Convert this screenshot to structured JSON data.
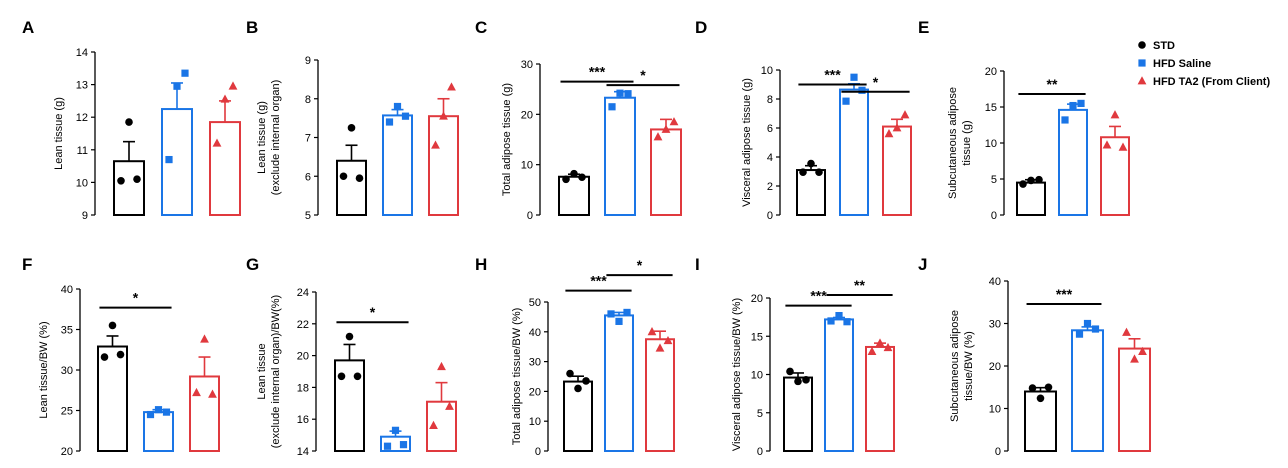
{
  "legend": [
    {
      "label": "STD",
      "color": "#000000",
      "marker": "circle"
    },
    {
      "label": "HFD Saline",
      "color": "#1a75e6",
      "marker": "square"
    },
    {
      "label": "HFD TA2 (From Client)",
      "color": "#e0393e",
      "marker": "triangle"
    }
  ],
  "chart_data": [
    {
      "type": "bar",
      "panel": "A",
      "categories": [
        "STD",
        "HFD Saline",
        "HFD TA2 (From Client)"
      ],
      "ylabel": [
        "Lean tissue (g)"
      ],
      "ylim": [
        9,
        14
      ],
      "yticks": [
        9,
        10,
        11,
        12,
        13,
        14
      ],
      "values": [
        10.65,
        12.25,
        11.85
      ],
      "errors": [
        0.6,
        0.8,
        0.65
      ],
      "points": [
        [
          10.05,
          11.85,
          10.1
        ],
        [
          10.7,
          12.95,
          13.35
        ],
        [
          11.2,
          12.55,
          12.95
        ]
      ],
      "significance": []
    },
    {
      "type": "bar",
      "panel": "B",
      "categories": [
        "STD",
        "HFD Saline",
        "HFD TA2 (From Client)"
      ],
      "ylabel": [
        "Lean tissue (g)",
        "(exclude internal organ)"
      ],
      "ylim": [
        5,
        9
      ],
      "yticks": [
        5,
        6,
        7,
        8,
        9
      ],
      "values": [
        6.4,
        7.57,
        7.55
      ],
      "errors": [
        0.4,
        0.15,
        0.45
      ],
      "points": [
        [
          6.0,
          7.25,
          5.95
        ],
        [
          7.4,
          7.8,
          7.55
        ],
        [
          6.8,
          7.55,
          8.3
        ]
      ],
      "significance": []
    },
    {
      "type": "bar",
      "panel": "C",
      "categories": [
        "STD",
        "HFD Saline",
        "HFD TA2 (From Client)"
      ],
      "ylabel": [
        "Total adipose tissue (g)"
      ],
      "ylim": [
        0,
        30
      ],
      "yticks": [
        0,
        10,
        20,
        30
      ],
      "values": [
        7.6,
        23.3,
        17.0
      ],
      "errors": [
        0.5,
        1.2,
        2.0
      ],
      "points": [
        [
          7.1,
          8.2,
          7.5
        ],
        [
          21.5,
          24.2,
          24.1
        ],
        [
          15.5,
          17.0,
          18.5
        ]
      ],
      "significance": [
        {
          "from": 0,
          "to": 1,
          "label": "***",
          "y": 26.5
        },
        {
          "from": 1,
          "to": 2,
          "label": "*",
          "y": 25.8
        }
      ]
    },
    {
      "type": "bar",
      "panel": "D",
      "categories": [
        "STD",
        "HFD Saline",
        "HFD TA2 (From Client)"
      ],
      "ylabel": [
        "Visceral adipose tissue (g)"
      ],
      "ylim": [
        0,
        10
      ],
      "yticks": [
        0,
        2,
        4,
        6,
        8,
        10
      ],
      "values": [
        3.1,
        8.65,
        6.1
      ],
      "errors": [
        0.3,
        0.4,
        0.5
      ],
      "points": [
        [
          2.95,
          3.55,
          2.95
        ],
        [
          7.85,
          9.5,
          8.6
        ],
        [
          5.6,
          6.0,
          6.9
        ]
      ],
      "significance": [
        {
          "from": 0,
          "to": 1,
          "label": "***",
          "y": 9.0
        },
        {
          "from": 1,
          "to": 2,
          "label": "*",
          "y": 8.5
        }
      ]
    },
    {
      "type": "bar",
      "panel": "E",
      "categories": [
        "STD",
        "HFD Saline",
        "HFD TA2 (From Client)"
      ],
      "ylabel": [
        "Subcutaneous adipose",
        "tissue (g)"
      ],
      "ylim": [
        0,
        20
      ],
      "yticks": [
        0,
        5,
        10,
        15,
        20
      ],
      "values": [
        4.5,
        14.6,
        10.8
      ],
      "errors": [
        0.4,
        0.8,
        1.5
      ],
      "points": [
        [
          4.3,
          4.8,
          4.9
        ],
        [
          13.2,
          15.2,
          15.5
        ],
        [
          9.7,
          13.9,
          9.4
        ]
      ],
      "significance": [
        {
          "from": 0,
          "to": 1,
          "label": "**",
          "y": 16.8
        }
      ]
    },
    {
      "type": "bar",
      "panel": "F",
      "categories": [
        "STD",
        "HFD Saline",
        "HFD TA2 (From Client)"
      ],
      "ylabel": [
        "Lean tissue/BW (%)"
      ],
      "ylim": [
        20,
        40
      ],
      "yticks": [
        20,
        25,
        30,
        35,
        40
      ],
      "values": [
        32.9,
        24.8,
        29.2
      ],
      "errors": [
        1.3,
        0.3,
        2.4
      ],
      "points": [
        [
          31.6,
          35.5,
          31.9
        ],
        [
          24.5,
          25.1,
          24.8
        ],
        [
          27.2,
          33.8,
          27.0
        ]
      ],
      "significance": [
        {
          "from": 0,
          "to": 1,
          "label": "*",
          "y": 37.7
        }
      ]
    },
    {
      "type": "bar",
      "panel": "G",
      "categories": [
        "STD",
        "HFD Saline",
        "HFD TA2 (From Client)"
      ],
      "ylabel": [
        "Lean tissue",
        "(exclude internal organ)/BW(%)"
      ],
      "ylim": [
        14,
        24
      ],
      "yticks": [
        14,
        16,
        18,
        20,
        22,
        24
      ],
      "values": [
        19.7,
        14.9,
        17.1
      ],
      "errors": [
        1.0,
        0.35,
        1.2
      ],
      "points": [
        [
          18.7,
          21.2,
          18.7
        ],
        [
          14.3,
          15.3,
          14.4
        ],
        [
          15.6,
          19.3,
          16.8
        ]
      ],
      "significance": [
        {
          "from": 0,
          "to": 1,
          "label": "*",
          "y": 22.1
        }
      ]
    },
    {
      "type": "bar",
      "panel": "H",
      "categories": [
        "STD",
        "HFD Saline",
        "HFD TA2 (From Client)"
      ],
      "ylabel": [
        "Total adipose tissue/BW (%)"
      ],
      "ylim": [
        0,
        50
      ],
      "yticks": [
        0,
        10,
        20,
        30,
        40,
        50
      ],
      "values": [
        23.3,
        45.5,
        37.5
      ],
      "errors": [
        1.8,
        1.0,
        2.7
      ],
      "points": [
        [
          26.0,
          21.0,
          23.5
        ],
        [
          46.0,
          43.5,
          46.5
        ],
        [
          40.0,
          34.5,
          37.0
        ]
      ],
      "significance": [
        {
          "from": 0,
          "to": 1,
          "label": "***",
          "y": 53.8
        },
        {
          "from": 1,
          "to": 2,
          "label": "*",
          "y": 59.0
        }
      ]
    },
    {
      "type": "bar",
      "panel": "I",
      "categories": [
        "STD",
        "HFD Saline",
        "HFD TA2 (From Client)"
      ],
      "ylabel": [
        "Visceral adipose tissue/BW (%)"
      ],
      "ylim": [
        0,
        20
      ],
      "yticks": [
        0,
        5,
        10,
        15,
        20
      ],
      "values": [
        9.6,
        17.2,
        13.6
      ],
      "errors": [
        0.6,
        0.25,
        0.5
      ],
      "points": [
        [
          10.4,
          9.1,
          9.3
        ],
        [
          17.0,
          17.7,
          16.9
        ],
        [
          13.0,
          14.1,
          13.5
        ]
      ],
      "significance": [
        {
          "from": 0,
          "to": 1,
          "label": "***",
          "y": 19.0
        },
        {
          "from": 1,
          "to": 2,
          "label": "**",
          "y": 20.4
        }
      ]
    },
    {
      "type": "bar",
      "panel": "J",
      "categories": [
        "STD",
        "HFD Saline",
        "HFD TA2 (From Client)"
      ],
      "ylabel": [
        "Subcutaneous adipose",
        "tissue/BW (%)"
      ],
      "ylim": [
        0,
        40
      ],
      "yticks": [
        0,
        10,
        20,
        30,
        40
      ],
      "values": [
        14.0,
        28.4,
        24.1
      ],
      "errors": [
        0.9,
        0.8,
        2.3
      ],
      "points": [
        [
          14.8,
          12.4,
          15.0
        ],
        [
          27.5,
          30.0,
          28.7
        ],
        [
          27.9,
          21.6,
          23.4
        ]
      ],
      "significance": [
        {
          "from": 0,
          "to": 1,
          "label": "***",
          "y": 34.6
        }
      ]
    }
  ]
}
